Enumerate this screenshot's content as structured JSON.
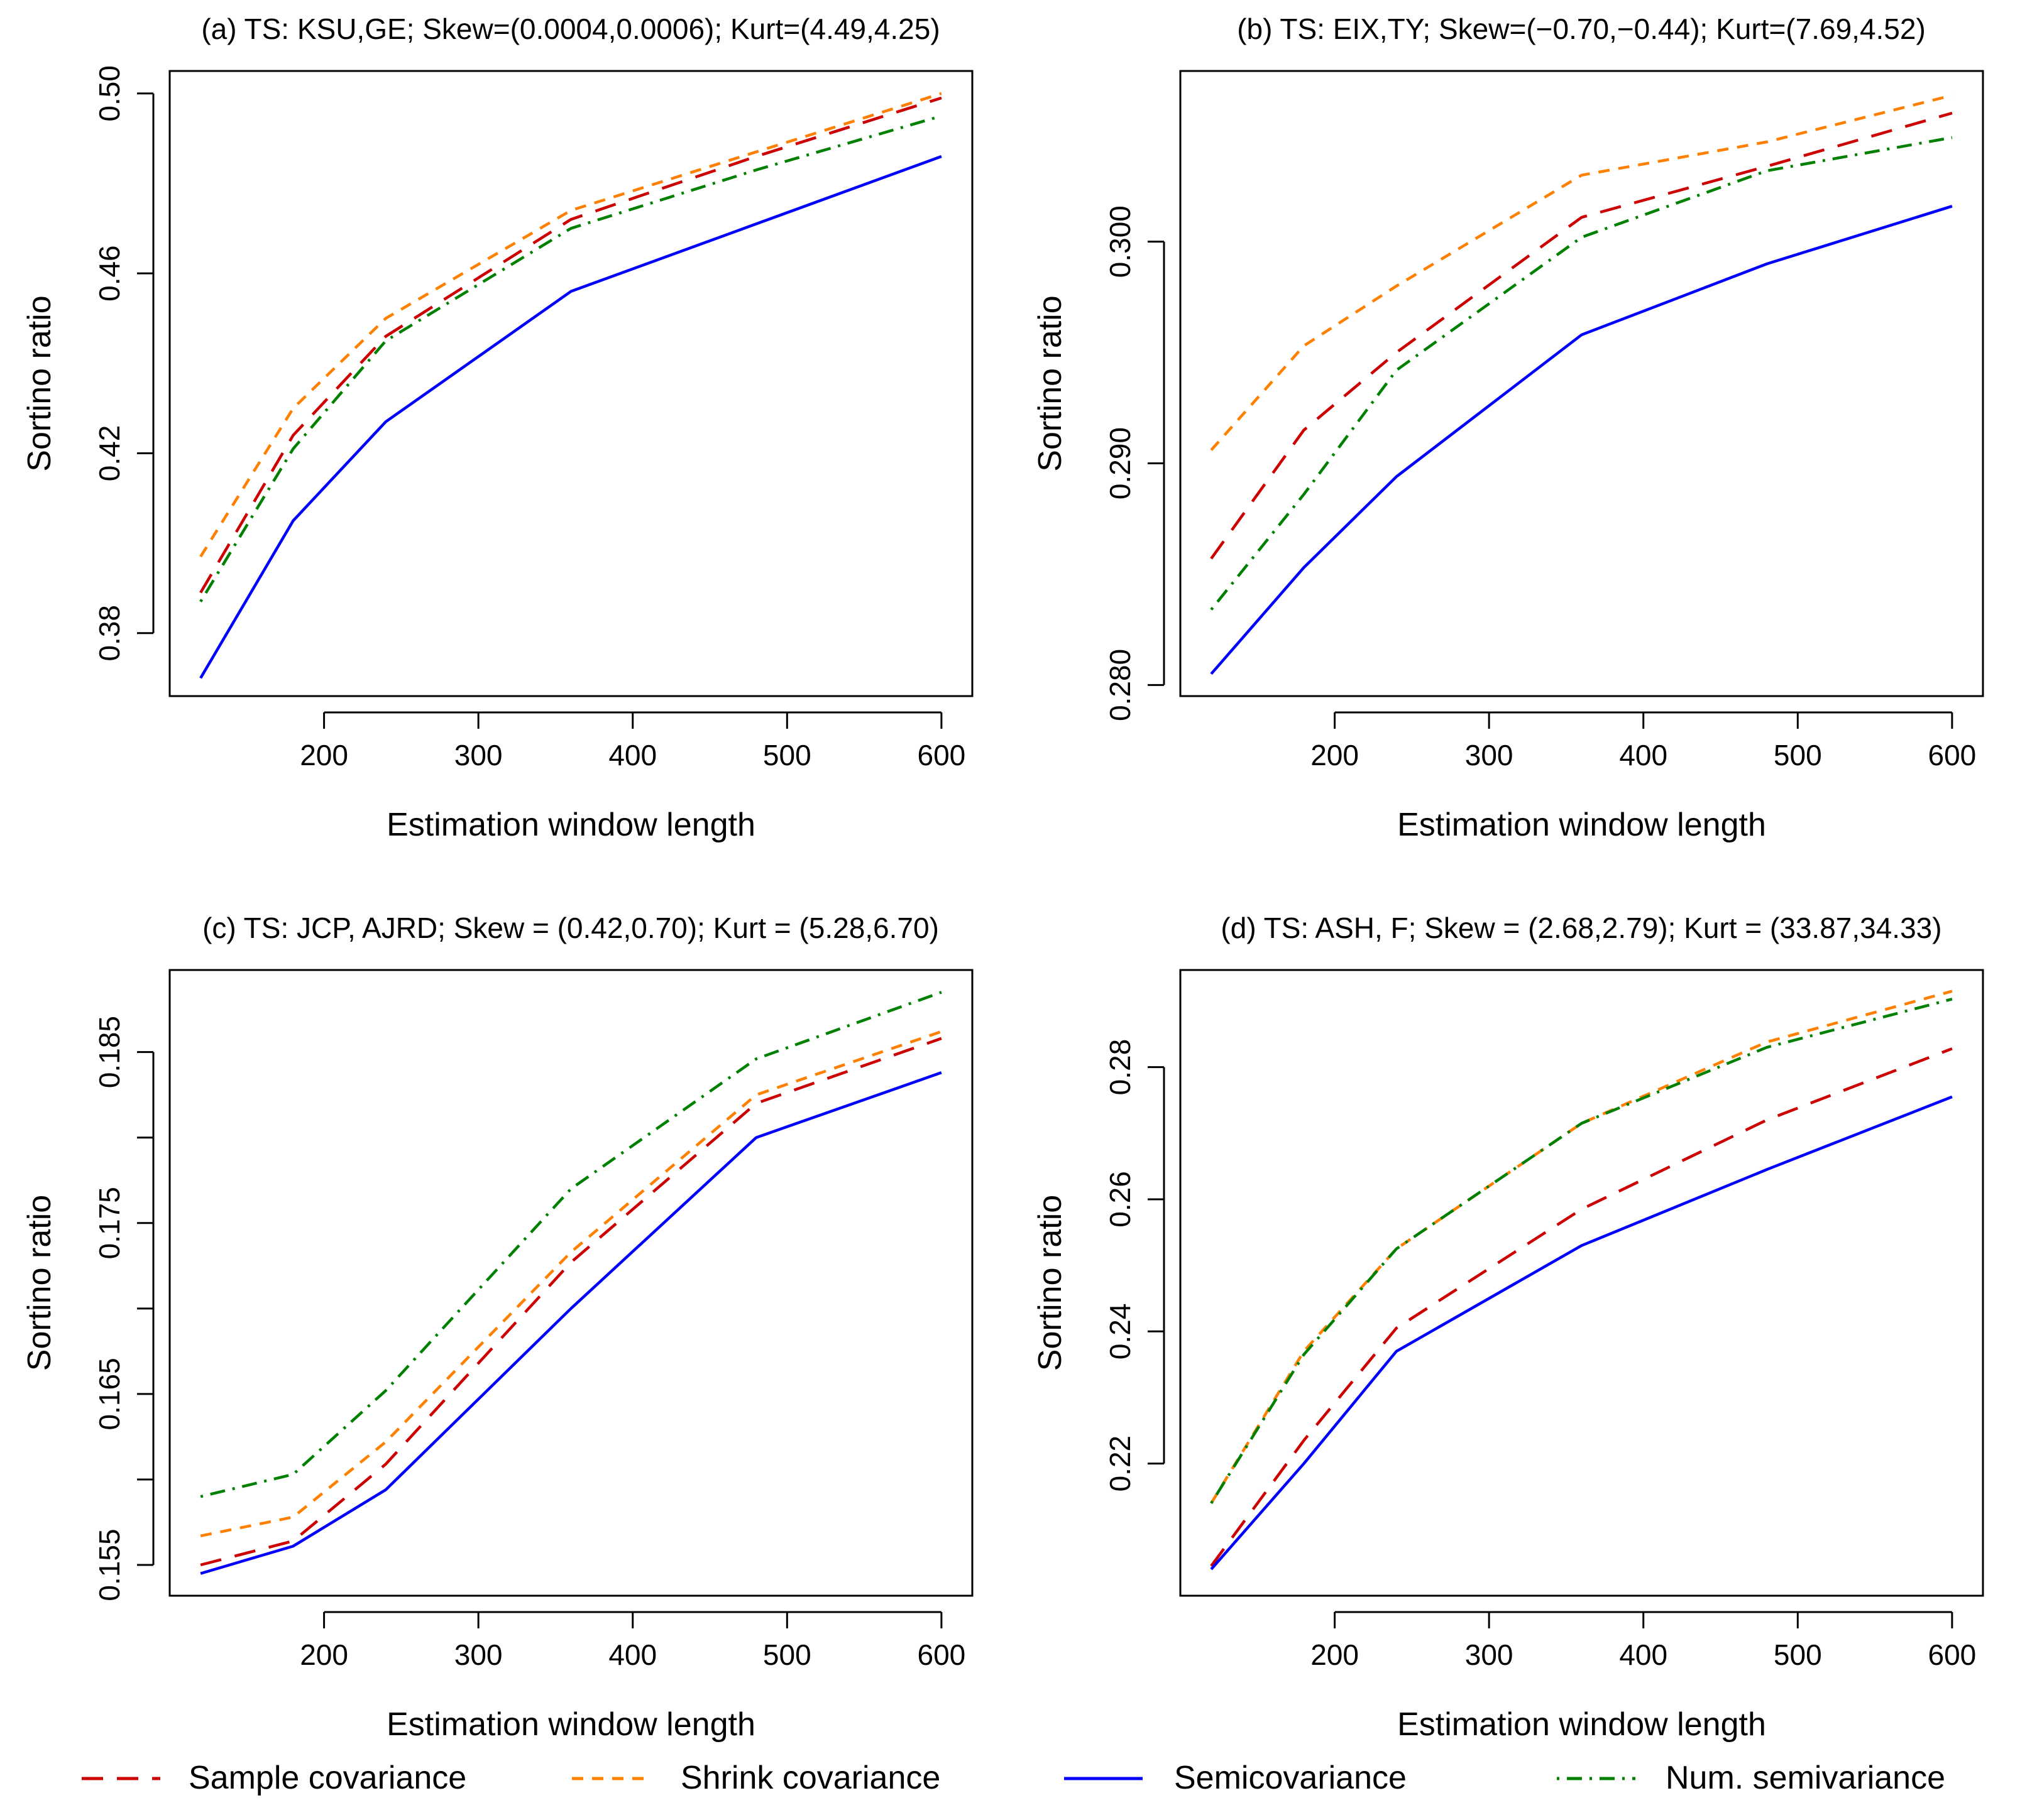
{
  "legend": [
    {
      "label": "Sample covariance",
      "color": "#cc0000",
      "style": "dashed"
    },
    {
      "label": "Shrink covariance",
      "color": "#ff8000",
      "style": "short-dashed"
    },
    {
      "label": "Semicovariance",
      "color": "#0000ff",
      "style": "solid"
    },
    {
      "label": "Num. semivariance",
      "color": "#008000",
      "style": "dot-dashed"
    }
  ],
  "chart_data": [
    {
      "type": "line",
      "title": "(a) TS: KSU,GE; Skew=(0.0004,0.0006); Kurt=(4.49,4.25)",
      "xlabel": "Estimation window length",
      "ylabel": "Sortino ratio",
      "x": [
        120,
        180,
        240,
        360,
        480,
        600
      ],
      "xlim": [
        100,
        620
      ],
      "ylim": [
        0.366,
        0.505
      ],
      "xticks": [
        200,
        300,
        400,
        500,
        600
      ],
      "xtick_labels": [
        "200",
        "300",
        "400",
        "500",
        "600"
      ],
      "yticks": [
        0.38,
        0.42,
        0.46,
        0.5
      ],
      "ytick_labels": [
        "0.38",
        "0.42",
        "0.46",
        "0.50"
      ],
      "series": [
        {
          "name": "Sample covariance",
          "values": [
            0.389,
            0.424,
            0.446,
            0.472,
            0.486,
            0.499
          ]
        },
        {
          "name": "Shrink covariance",
          "values": [
            0.397,
            0.43,
            0.45,
            0.474,
            0.487,
            0.5
          ]
        },
        {
          "name": "Semicovariance",
          "values": [
            0.37,
            0.405,
            0.427,
            0.456,
            0.471,
            0.486
          ]
        },
        {
          "name": "Num. semivariance",
          "values": [
            0.387,
            0.421,
            0.445,
            0.47,
            0.483,
            0.495
          ]
        }
      ]
    },
    {
      "type": "line",
      "title": "(b) TS: EIX,TY; Skew=(−0.70,−0.44); Kurt=(7.69,4.52)",
      "xlabel": "Estimation window length",
      "ylabel": "Sortino ratio",
      "x": [
        120,
        180,
        240,
        360,
        480,
        600
      ],
      "xlim": [
        100,
        620
      ],
      "ylim": [
        0.2795,
        0.3077
      ],
      "xticks": [
        200,
        300,
        400,
        500,
        600
      ],
      "xtick_labels": [
        "200",
        "300",
        "400",
        "500",
        "600"
      ],
      "yticks": [
        0.28,
        0.29,
        0.3
      ],
      "ytick_labels": [
        "0.280",
        "0.290",
        "0.300"
      ],
      "series": [
        {
          "name": "Sample covariance",
          "values": [
            0.2857,
            0.2915,
            0.295,
            0.3011,
            0.3034,
            0.3058
          ]
        },
        {
          "name": "Shrink covariance",
          "values": [
            0.2906,
            0.2953,
            0.298,
            0.303,
            0.3045,
            0.3066
          ]
        },
        {
          "name": "Semicovariance",
          "values": [
            0.2805,
            0.2853,
            0.2894,
            0.2958,
            0.299,
            0.3016
          ]
        },
        {
          "name": "Num. semivariance",
          "values": [
            0.2834,
            0.2886,
            0.2942,
            0.3002,
            0.3032,
            0.3047
          ]
        }
      ]
    },
    {
      "type": "line",
      "title": "(c) TS: JCP, AJRD; Skew = (0.42,0.70); Kurt = (5.28,6.70)",
      "xlabel": "Estimation window length",
      "ylabel": "Sortino ratio",
      "x": [
        120,
        180,
        240,
        360,
        480,
        600
      ],
      "xlim": [
        100,
        620
      ],
      "ylim": [
        0.1532,
        0.1898
      ],
      "xticks": [
        200,
        300,
        400,
        500,
        600
      ],
      "xtick_labels": [
        "200",
        "300",
        "400",
        "500",
        "600"
      ],
      "yticks": [
        0.155,
        0.16,
        0.165,
        0.17,
        0.175,
        0.18,
        0.185
      ],
      "ytick_labels": [
        "0.155",
        "",
        "0.165",
        "",
        "0.175",
        "",
        "0.185"
      ],
      "series": [
        {
          "name": "Sample covariance",
          "values": [
            0.155,
            0.1564,
            0.1609,
            0.1727,
            0.182,
            0.1858
          ]
        },
        {
          "name": "Shrink covariance",
          "values": [
            0.1567,
            0.1578,
            0.1622,
            0.1733,
            0.1825,
            0.1862
          ]
        },
        {
          "name": "Semicovariance",
          "values": [
            0.1545,
            0.1561,
            0.1594,
            0.17,
            0.18,
            0.1838
          ]
        },
        {
          "name": "Num. semivariance",
          "values": [
            0.159,
            0.1603,
            0.1652,
            0.177,
            0.1846,
            0.1885
          ]
        }
      ]
    },
    {
      "type": "line",
      "title": "(d) TS: ASH, F; Skew = (2.68,2.79); Kurt = (33.87,34.33)",
      "xlabel": "Estimation window length",
      "ylabel": "Sortino ratio",
      "x": [
        120,
        180,
        240,
        360,
        480,
        600
      ],
      "xlim": [
        100,
        620
      ],
      "ylim": [
        0.2,
        0.2947
      ],
      "xticks": [
        200,
        300,
        400,
        500,
        600
      ],
      "xtick_labels": [
        "200",
        "300",
        "400",
        "500",
        "600"
      ],
      "yticks": [
        0.22,
        0.24,
        0.26,
        0.28
      ],
      "ytick_labels": [
        "0.22",
        "0.24",
        "0.26",
        "0.28"
      ],
      "series": [
        {
          "name": "Sample covariance",
          "values": [
            0.2045,
            0.2235,
            0.2405,
            0.2585,
            0.272,
            0.2828
          ]
        },
        {
          "name": "Shrink covariance",
          "values": [
            0.214,
            0.237,
            0.2525,
            0.2715,
            0.2838,
            0.2915
          ]
        },
        {
          "name": "Semicovariance",
          "values": [
            0.204,
            0.22,
            0.237,
            0.253,
            0.2645,
            0.2755
          ]
        },
        {
          "name": "Num. semivariance",
          "values": [
            0.214,
            0.2365,
            0.2525,
            0.2715,
            0.283,
            0.2903
          ]
        }
      ]
    }
  ]
}
